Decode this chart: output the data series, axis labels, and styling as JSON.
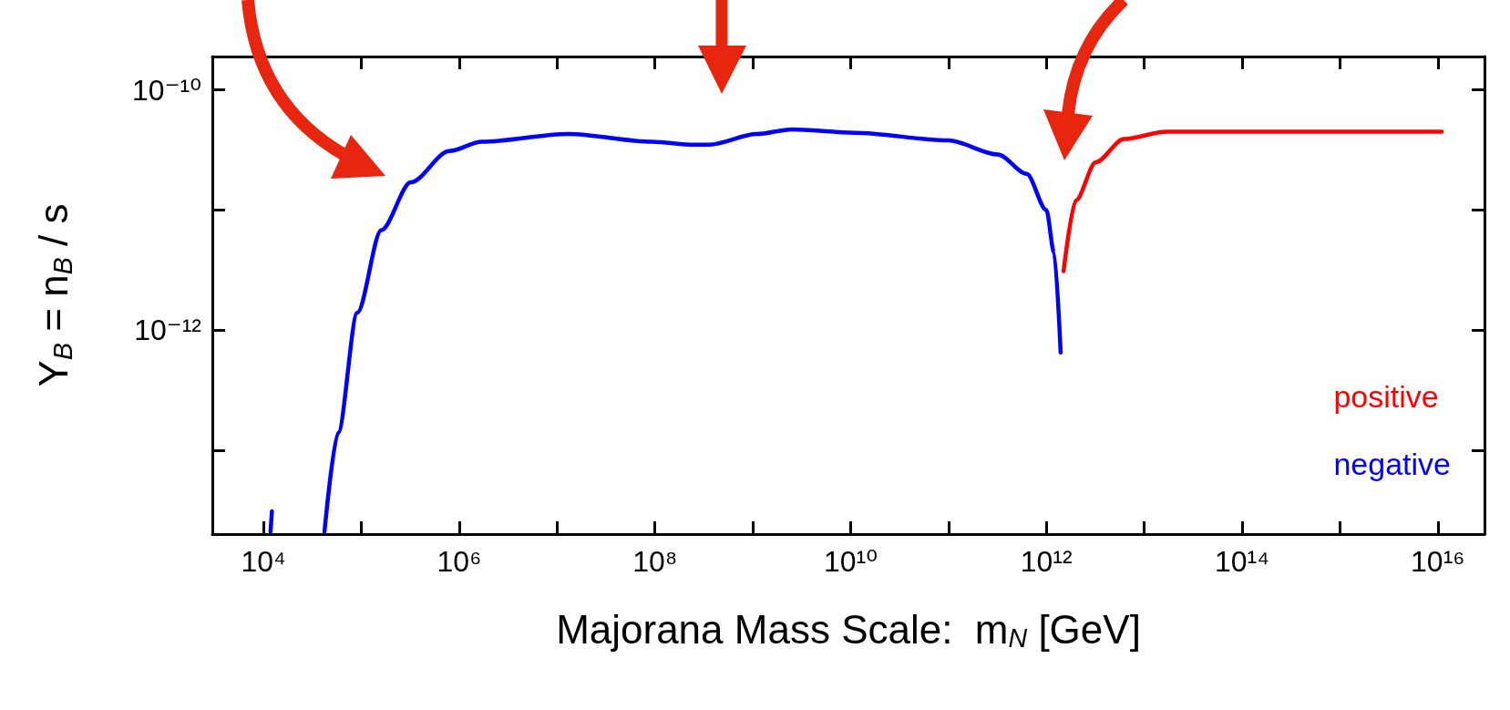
{
  "chart_data": {
    "type": "line",
    "xlabel": "Majorana Mass Scale:  m$_{N}$ [GeV]",
    "ylabel": "Y$_{B}$ = n$_{B}$ / s",
    "log": "xy",
    "xlim": [
      3000,
      3e+16
    ],
    "ylim": [
      2e-14,
      1.9e-10
    ],
    "xticks": [
      {
        "value": 10000.0,
        "label": "10⁴"
      },
      {
        "value": 100000.0,
        "label": null
      },
      {
        "value": 1000000.0,
        "label": "10⁶"
      },
      {
        "value": 10000000.0,
        "label": null
      },
      {
        "value": 100000000.0,
        "label": "10⁸"
      },
      {
        "value": 1000000000.0,
        "label": null
      },
      {
        "value": 10000000000.0,
        "label": "10¹⁰"
      },
      {
        "value": 100000000000.0,
        "label": null
      },
      {
        "value": 1000000000000.0,
        "label": "10¹²"
      },
      {
        "value": 10000000000000.0,
        "label": null
      },
      {
        "value": 100000000000000.0,
        "label": "10¹⁴"
      },
      {
        "value": 1000000000000000.0,
        "label": null
      },
      {
        "value": 1e+16,
        "label": "10¹⁶"
      }
    ],
    "yticks": [
      {
        "value": 1e-13,
        "label": null
      },
      {
        "value": 1e-12,
        "label": "10⁻¹²"
      },
      {
        "value": 1e-11,
        "label": null
      },
      {
        "value": 1e-10,
        "label": "10⁻¹⁰"
      }
    ],
    "legend": "bottom right",
    "marker": "none",
    "line_style": "solid",
    "series": [
      {
        "name": "positive",
        "color": "#ff0000",
        "x": [
          1500000000000.0,
          2000000000000.0,
          3200000000000.0,
          6200000000000.0,
          17000000000000.0,
          93000000000000.0,
          1.1e+16
        ],
        "values": [
          3.1e-12,
          1.2e-11,
          2.5e-11,
          3.9e-11,
          4.5e-11,
          4.5e-11,
          4.5e-11
        ]
      },
      {
        "name": "negative",
        "color": "#0000ff",
        "x": [
          42000.0,
          58000.0,
          91000.0,
          160000.0,
          320000.0,
          790000.0,
          1700000.0,
          13000000.0,
          93000000.0,
          250000000.0,
          360000000.0,
          1100000000.0,
          2500000000.0,
          11000000000.0,
          100000000000.0,
          320000000000.0,
          630000000000.0,
          1000000000000.0,
          1200000000000.0,
          1400000000000.0
        ],
        "values": [
          2.1e-14,
          1.4e-13,
          1.4e-12,
          6.8e-12,
          1.7e-11,
          3.1e-11,
          3.7e-11,
          4.3e-11,
          3.7e-11,
          3.5e-11,
          3.5e-11,
          4.3e-11,
          4.7e-11,
          4.4e-11,
          3.8e-11,
          2.9e-11,
          2e-11,
          1e-11,
          4.4e-12,
          6.5e-13
        ]
      },
      {
        "color": "#0000ff",
        "x": [
          11800.0,
          12200.0
        ],
        "values": [
          2.1e-14,
          3.1e-14
        ]
      }
    ]
  }
}
